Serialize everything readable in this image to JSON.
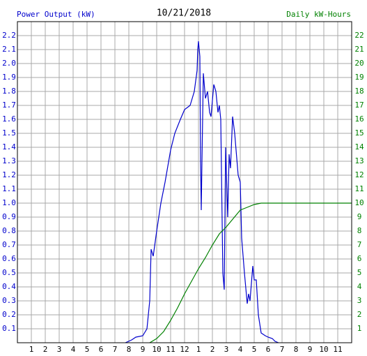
{
  "chart_data": {
    "type": "line",
    "title": "10/21/2018",
    "y_label": "Power Output (kW)",
    "y2_label": "Daily kW-Hours",
    "xlim": [
      0,
      24
    ],
    "xticks": [
      1,
      2,
      3,
      4,
      5,
      6,
      7,
      8,
      9,
      10,
      11,
      12,
      {
        "value": 13,
        "label": "1"
      },
      {
        "value": 14,
        "label": "2"
      },
      {
        "value": 15,
        "label": "3"
      },
      {
        "value": 16,
        "label": "4"
      },
      {
        "value": 17,
        "label": "5"
      },
      {
        "value": 18,
        "label": "6"
      },
      {
        "value": 19,
        "label": "7"
      },
      {
        "value": 20,
        "label": "8"
      },
      {
        "value": 21,
        "label": "9"
      },
      {
        "value": 22,
        "label": "10"
      },
      {
        "value": 23,
        "label": "11"
      }
    ],
    "ylim": [
      0,
      2.3
    ],
    "yticks": [
      0.1,
      0.2,
      0.3,
      0.4,
      0.5,
      0.6,
      0.7,
      0.8,
      0.9,
      {
        "value": 1,
        "label": "1.0"
      },
      1.1,
      1.2,
      1.3,
      1.4,
      1.5,
      1.6,
      1.7,
      1.8,
      1.9,
      {
        "value": 2,
        "label": "2.0"
      },
      2.1,
      2.2
    ],
    "y2lim": [
      0,
      23
    ],
    "y2ticks": [
      1,
      2,
      3,
      4,
      5,
      6,
      7,
      8,
      9,
      10,
      11,
      12,
      13,
      14,
      15,
      16,
      17,
      18,
      19,
      20,
      21,
      22
    ],
    "grid": true,
    "series": [
      {
        "color": "#0000cc",
        "x": [
          7.75,
          8.2,
          8.5,
          9.0,
          9.3,
          9.5,
          9.6,
          9.75,
          10.0,
          10.3,
          10.6,
          11.0,
          11.3,
          11.7,
          12.0,
          12.4,
          12.7,
          12.9,
          12.95,
          13.0,
          13.1,
          13.15,
          13.2,
          13.25,
          13.35,
          13.5,
          13.65,
          13.8,
          13.9,
          14.1,
          14.25,
          14.4,
          14.5,
          14.6,
          14.75,
          14.85,
          14.95,
          15.1,
          15.2,
          15.3,
          15.45,
          15.6,
          15.85,
          16.0,
          16.1,
          16.3,
          16.5,
          16.6,
          16.7,
          16.9,
          17.0,
          17.15,
          17.3,
          17.5,
          17.8,
          18.0,
          18.3,
          18.5,
          18.75
        ],
        "values": [
          0,
          0.02,
          0.04,
          0.05,
          0.1,
          0.3,
          0.67,
          0.62,
          0.8,
          1.0,
          1.15,
          1.38,
          1.5,
          1.6,
          1.67,
          1.7,
          1.8,
          1.95,
          2.1,
          2.16,
          2.05,
          1.3,
          0.95,
          1.3,
          1.93,
          1.75,
          1.8,
          1.65,
          1.62,
          1.85,
          1.8,
          1.65,
          1.7,
          1.6,
          0.5,
          0.38,
          1.4,
          0.9,
          1.35,
          1.25,
          1.62,
          1.5,
          1.2,
          1.15,
          0.75,
          0.5,
          0.28,
          0.35,
          0.3,
          0.55,
          0.45,
          0.45,
          0.2,
          0.07,
          0.05,
          0.04,
          0.03,
          0.01,
          0
        ]
      },
      {
        "color": "#008000",
        "axis": "y2",
        "x": [
          9.5,
          10.0,
          10.5,
          11.0,
          11.5,
          12.0,
          12.5,
          13.0,
          13.5,
          14.0,
          14.5,
          15.0,
          15.5,
          16.0,
          16.5,
          17.0,
          17.5,
          18.0,
          24.0
        ],
        "values": [
          0,
          0.3,
          0.8,
          1.6,
          2.5,
          3.5,
          4.4,
          5.3,
          6.1,
          7.0,
          7.8,
          8.3,
          8.9,
          9.5,
          9.7,
          9.9,
          10,
          10,
          10
        ]
      }
    ]
  }
}
